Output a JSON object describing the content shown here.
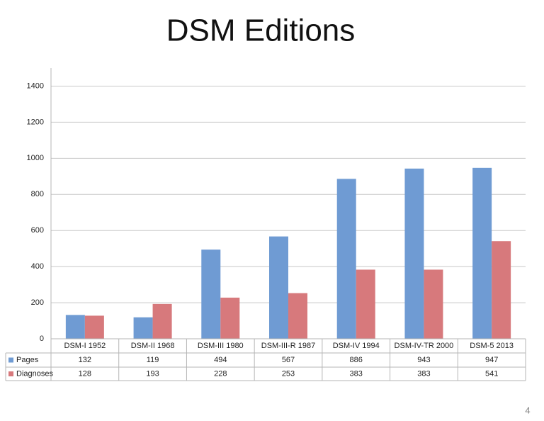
{
  "chart_data": {
    "type": "bar",
    "title": "DSM Editions",
    "categories": [
      "DSM-I 1952",
      "DSM-II 1968",
      "DSM-III 1980",
      "DSM-III-R 1987",
      "DSM-IV 1994",
      "DSM-IV-TR 2000",
      "DSM-5 2013"
    ],
    "series": [
      {
        "name": "Pages",
        "color": "#6f9bd3",
        "values": [
          132,
          119,
          494,
          567,
          886,
          943,
          947
        ]
      },
      {
        "name": "Diagnoses",
        "color": "#d7797c",
        "values": [
          128,
          193,
          228,
          253,
          383,
          383,
          541
        ]
      }
    ],
    "ylim": [
      0,
      1500
    ],
    "yticks": [
      0,
      200,
      400,
      600,
      800,
      1000,
      1200,
      1400
    ],
    "grid": true
  },
  "slide_number": "4"
}
